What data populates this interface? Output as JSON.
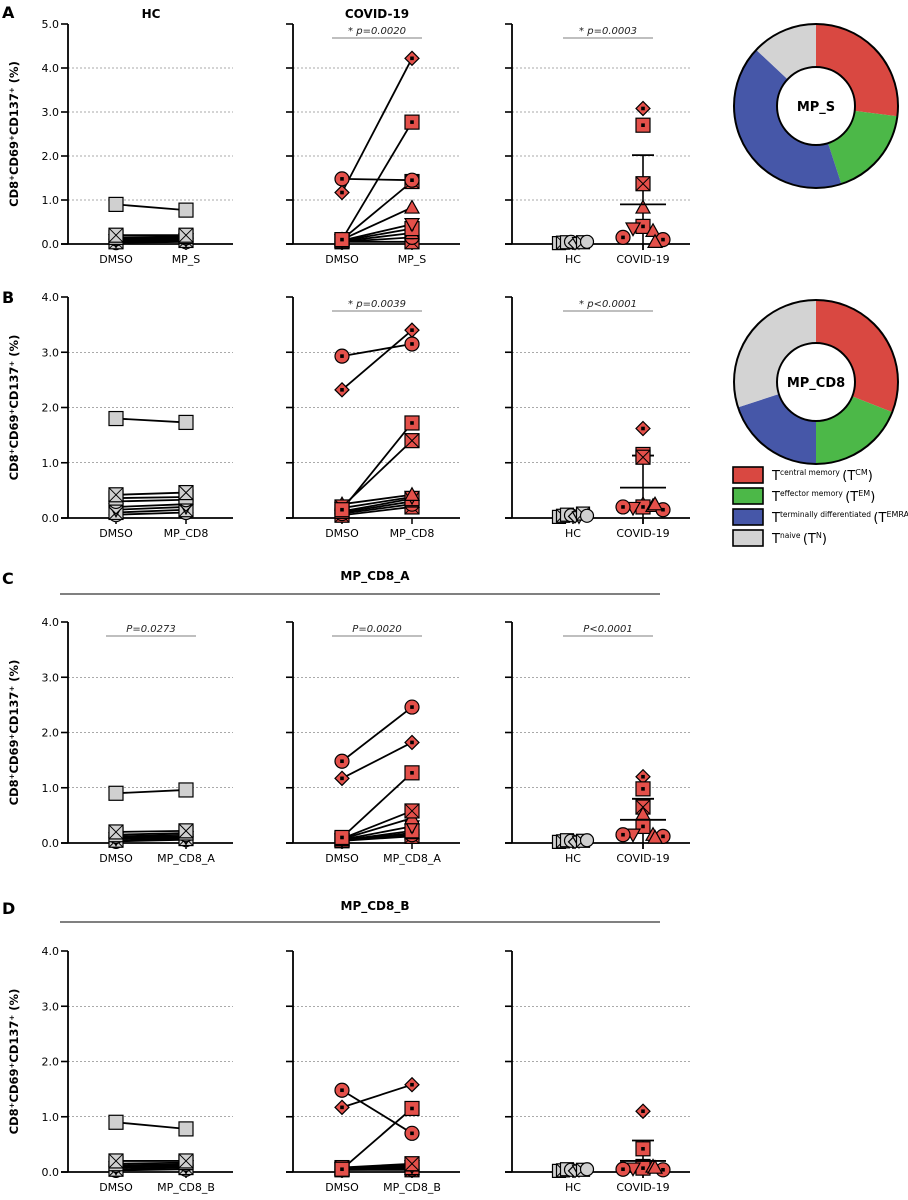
{
  "chart_data": {
    "type": "scatter",
    "ylabel": "CD8+CD69+CD137+ (%)",
    "column_titles": [
      "HC",
      "COVID-19"
    ],
    "rows": [
      {
        "letter": "A",
        "header": "",
        "ylim": [
          0,
          5
        ],
        "yticks": [
          "0.0",
          "1.0",
          "2.0",
          "3.0",
          "4.0",
          "5.0"
        ],
        "panels": [
          {
            "kind": "paired",
            "group": "HC",
            "categories": [
              "DMSO",
              "MP_S"
            ],
            "pvalue": "",
            "pairs": [
              [
                0.9,
                0.77
              ],
              [
                0.2,
                0.2
              ],
              [
                0.15,
                0.17
              ],
              [
                0.12,
                0.14
              ],
              [
                0.1,
                0.12
              ],
              [
                0.08,
                0.1
              ],
              [
                0.05,
                0.08
              ],
              [
                0.03,
                0.05
              ]
            ]
          },
          {
            "kind": "paired",
            "group": "COVID-19",
            "categories": [
              "DMSO",
              "MP_S"
            ],
            "pvalue": "* p=0.0020",
            "pairs": [
              [
                1.48,
                1.45
              ],
              [
                1.17,
                4.22
              ],
              [
                0.1,
                2.77
              ],
              [
                0.1,
                1.42
              ],
              [
                0.1,
                0.83
              ],
              [
                0.08,
                0.45
              ],
              [
                0.07,
                0.35
              ],
              [
                0.06,
                0.25
              ],
              [
                0.05,
                0.15
              ],
              [
                0.05,
                0.05
              ]
            ]
          },
          {
            "kind": "groups",
            "categories": [
              "HC",
              "COVID-19"
            ],
            "pvalue": "* p=0.0003",
            "hc": [
              0.02,
              0.03,
              0.04,
              0.05,
              0.02,
              0.03,
              0.04,
              0.05
            ],
            "covid": [
              3.08,
              2.7,
              1.37,
              0.83,
              0.4,
              0.35,
              0.3,
              0.15,
              0.1,
              0.05
            ],
            "covid_mean": 0.9,
            "covid_sd_upper": 2.02
          }
        ]
      },
      {
        "letter": "B",
        "header": "",
        "ylim": [
          0,
          4
        ],
        "yticks": [
          "0.0",
          "1.0",
          "2.0",
          "3.0",
          "4.0"
        ],
        "panels": [
          {
            "kind": "paired",
            "group": "HC",
            "categories": [
              "DMSO",
              "MP_CD8"
            ],
            "pvalue": "",
            "pairs": [
              [
                1.8,
                1.73
              ],
              [
                0.42,
                0.46
              ],
              [
                0.36,
                0.38
              ],
              [
                0.3,
                0.33
              ],
              [
                0.2,
                0.25
              ],
              [
                0.15,
                0.2
              ],
              [
                0.1,
                0.15
              ],
              [
                0.06,
                0.1
              ]
            ]
          },
          {
            "kind": "paired",
            "group": "COVID-19",
            "categories": [
              "DMSO",
              "MP_CD8"
            ],
            "pvalue": "* p=0.0039",
            "pairs": [
              [
                2.93,
                3.15
              ],
              [
                2.32,
                3.4
              ],
              [
                0.15,
                1.72
              ],
              [
                0.2,
                1.4
              ],
              [
                0.25,
                0.42
              ],
              [
                0.18,
                0.38
              ],
              [
                0.12,
                0.35
              ],
              [
                0.1,
                0.3
              ],
              [
                0.08,
                0.25
              ],
              [
                0.05,
                0.2
              ]
            ]
          },
          {
            "kind": "groups",
            "categories": [
              "HC",
              "COVID-19"
            ],
            "pvalue": "* p<0.0001",
            "hc": [
              0.02,
              0.04,
              0.06,
              0.05,
              0.03,
              0.02,
              0.08,
              0.04
            ],
            "covid": [
              1.62,
              1.15,
              1.1,
              0.25,
              0.2,
              0.18,
              0.22,
              0.2,
              0.15,
              0.25
            ],
            "covid_mean": 0.55,
            "covid_sd_upper": 1.13
          }
        ]
      },
      {
        "letter": "C",
        "header": "MP_CD8_A",
        "ylim": [
          0,
          4
        ],
        "yticks": [
          "0.0",
          "1.0",
          "2.0",
          "3.0",
          "4.0"
        ],
        "panels": [
          {
            "kind": "paired",
            "group": "HC",
            "categories": [
              "DMSO",
              "MP_CD8_A"
            ],
            "pvalue": "P=0.0273",
            "pairs": [
              [
                0.9,
                0.96
              ],
              [
                0.2,
                0.22
              ],
              [
                0.15,
                0.18
              ],
              [
                0.12,
                0.15
              ],
              [
                0.1,
                0.12
              ],
              [
                0.08,
                0.1
              ],
              [
                0.05,
                0.08
              ],
              [
                0.03,
                0.06
              ]
            ]
          },
          {
            "kind": "paired",
            "group": "COVID-19",
            "categories": [
              "DMSO",
              "MP_CD8_A"
            ],
            "pvalue": "P=0.0020",
            "pairs": [
              [
                1.48,
                2.46
              ],
              [
                1.17,
                1.82
              ],
              [
                0.1,
                1.27
              ],
              [
                0.08,
                0.58
              ],
              [
                0.07,
                0.45
              ],
              [
                0.06,
                0.3
              ],
              [
                0.05,
                0.22
              ],
              [
                0.05,
                0.18
              ],
              [
                0.04,
                0.15
              ],
              [
                0.04,
                0.12
              ]
            ]
          },
          {
            "kind": "groups",
            "categories": [
              "HC",
              "COVID-19"
            ],
            "pvalue": "P<0.0001",
            "hc": [
              0.02,
              0.03,
              0.05,
              0.04,
              0.02,
              0.03,
              0.04,
              0.05
            ],
            "covid": [
              1.2,
              0.98,
              0.65,
              0.52,
              0.3,
              0.15,
              0.15,
              0.15,
              0.12,
              0.1
            ],
            "covid_mean": 0.42,
            "covid_sd_upper": 0.8
          }
        ]
      },
      {
        "letter": "D",
        "header": "MP_CD8_B",
        "ylim": [
          0,
          4
        ],
        "yticks": [
          "0.0",
          "1.0",
          "2.0",
          "3.0",
          "4.0"
        ],
        "panels": [
          {
            "kind": "paired",
            "group": "HC",
            "categories": [
              "DMSO",
              "MP_CD8_B"
            ],
            "pvalue": "",
            "pairs": [
              [
                0.9,
                0.78
              ],
              [
                0.2,
                0.2
              ],
              [
                0.15,
                0.17
              ],
              [
                0.12,
                0.14
              ],
              [
                0.1,
                0.12
              ],
              [
                0.08,
                0.1
              ],
              [
                0.05,
                0.08
              ],
              [
                0.03,
                0.05
              ]
            ]
          },
          {
            "kind": "paired",
            "group": "COVID-19",
            "categories": [
              "DMSO",
              "MP_CD8_B"
            ],
            "pvalue": "",
            "pairs": [
              [
                1.48,
                0.7
              ],
              [
                1.17,
                1.58
              ],
              [
                0.05,
                1.15
              ],
              [
                0.08,
                0.15
              ],
              [
                0.07,
                0.12
              ],
              [
                0.06,
                0.1
              ],
              [
                0.05,
                0.08
              ],
              [
                0.05,
                0.06
              ],
              [
                0.04,
                0.05
              ],
              [
                0.04,
                0.04
              ]
            ]
          },
          {
            "kind": "groups",
            "categories": [
              "HC",
              "COVID-19"
            ],
            "pvalue": "",
            "hc": [
              0.02,
              0.03,
              0.05,
              0.04,
              0.02,
              0.03,
              0.04,
              0.05
            ],
            "covid": [
              1.1,
              0.42,
              0.1,
              0.08,
              0.07,
              0.06,
              0.1,
              0.05,
              0.04,
              0.08
            ],
            "covid_mean": 0.2,
            "covid_sd_upper": 0.57
          }
        ]
      }
    ],
    "donuts": [
      {
        "label": "MP_S",
        "slices": [
          {
            "name": "central memory",
            "value": 27
          },
          {
            "name": "effector memory",
            "value": 18
          },
          {
            "name": "terminally differentiated",
            "value": 42
          },
          {
            "name": "naive",
            "value": 13
          }
        ]
      },
      {
        "label": "MP_CD8",
        "slices": [
          {
            "name": "central memory",
            "value": 31
          },
          {
            "name": "effector memory",
            "value": 19
          },
          {
            "name": "terminally differentiated",
            "value": 20
          },
          {
            "name": "naive",
            "value": 30
          }
        ]
      }
    ],
    "legend": [
      {
        "main": "T",
        "sup": "central memory",
        "abbr_main": "(T",
        "abbr_sup": "CM",
        "close": ")",
        "color": "#d94841"
      },
      {
        "main": "T",
        "sup": "effector memory",
        "abbr_main": "(T",
        "abbr_sup": "EM",
        "close": ")",
        "color": "#4cb848"
      },
      {
        "main": "T",
        "sup": "terminally differentiated",
        "abbr_main": "(T",
        "abbr_sup": "EMRA",
        "close": ")",
        "color": "#4657a8"
      },
      {
        "main": "T",
        "sup": "naive",
        "abbr_main": "(T",
        "abbr_sup": "N",
        "close": ")",
        "color": "#d3d3d3"
      }
    ],
    "colors": {
      "covid": "#e4504a",
      "hc": "#d0d0d0"
    }
  }
}
